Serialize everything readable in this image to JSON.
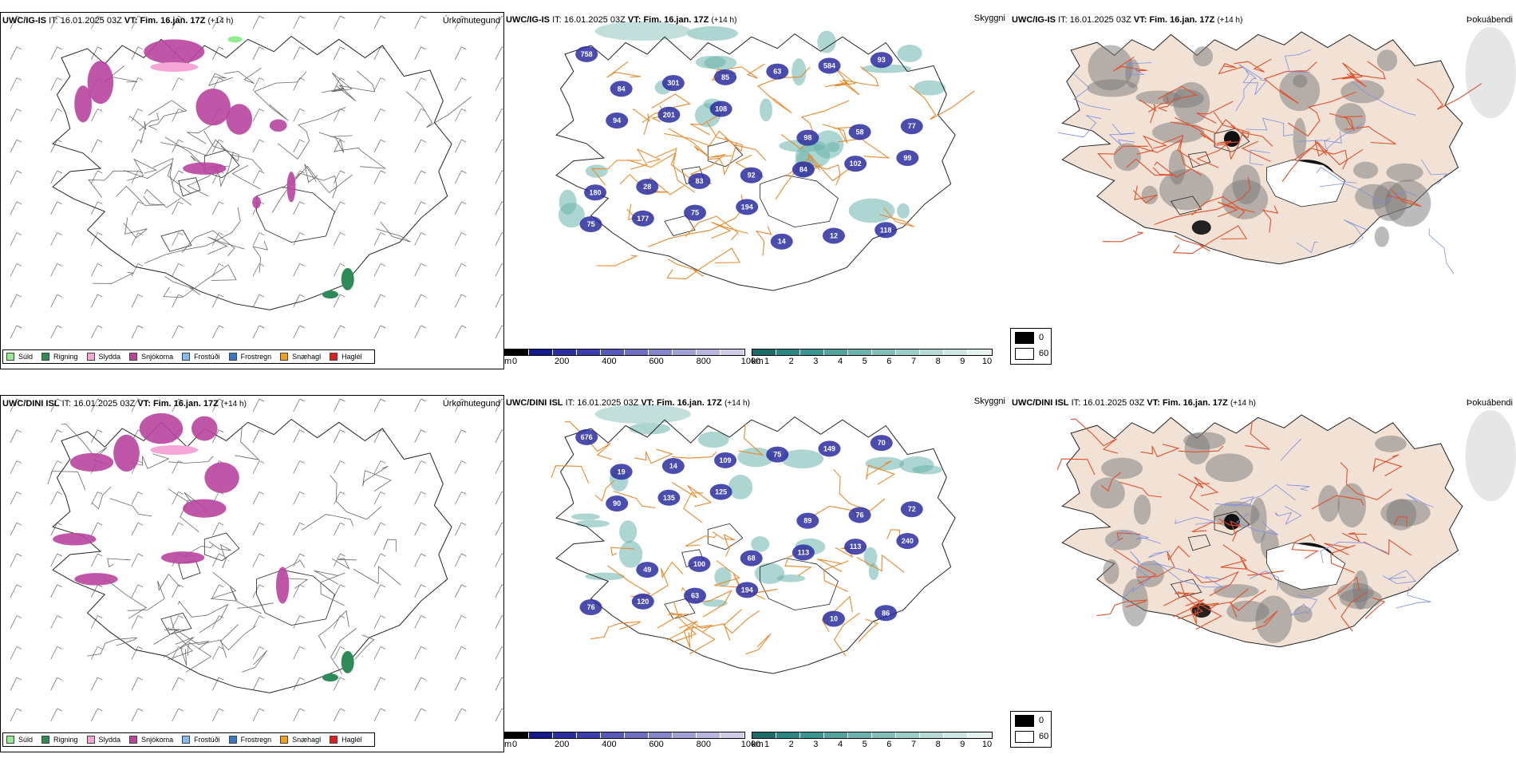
{
  "rows": [
    {
      "model": "UWC/IG-IS",
      "it_label": "IT:",
      "it_value": "16.01.2025 03Z",
      "vt_label": "VT:",
      "vt_value": "Fim. 16.jan. 17Z",
      "lead": "(+14 h)",
      "precip_title": "Úrkomutegund",
      "vis_title": "Skyggni",
      "dew_title": "Þokuábendi",
      "ceiling_labels": [
        "758",
        "194",
        "99",
        "108",
        "93",
        "75",
        "102",
        "201",
        "584",
        "177",
        "84",
        "94",
        "63",
        "75",
        "92",
        "77",
        "85",
        "118",
        "83",
        "58",
        "301",
        "12",
        "28",
        "98",
        "84",
        "14",
        "180"
      ],
      "dewlegend": {
        "black": "0",
        "white": "60"
      }
    },
    {
      "model": "UWC/DINI ISL",
      "it_label": "IT:",
      "it_value": "16.01.2025 03Z",
      "vt_label": "VT:",
      "vt_value": "Fim. 16.jan. 17Z",
      "lead": "(+14 h)",
      "precip_title": "Úrkomutegund",
      "vis_title": "Skyggni",
      "dew_title": "Þokuábendi",
      "ceiling_labels": [
        "676",
        "194",
        "240",
        "125",
        "70",
        "63",
        "113",
        "135",
        "149",
        "120",
        "113",
        "90",
        "75",
        "76",
        "68",
        "72",
        "109",
        "86",
        "100",
        "76",
        "14",
        "10",
        "49",
        "89",
        "19"
      ],
      "dewlegend": {
        "black": "0",
        "white": "60"
      }
    }
  ],
  "precip_legend": [
    {
      "label": "Súld",
      "color": "#90ee90"
    },
    {
      "label": "Rigning",
      "color": "#2e8b57"
    },
    {
      "label": "Slydda",
      "color": "#f4a6d7"
    },
    {
      "label": "Snjókoma",
      "color": "#b8449e"
    },
    {
      "label": "Frostúði",
      "color": "#87b8f0"
    },
    {
      "label": "Frostregn",
      "color": "#3a78c0"
    },
    {
      "label": "Snæhagl",
      "color": "#f0a020"
    },
    {
      "label": "Haglél",
      "color": "#e02020"
    }
  ],
  "ceiling_scale": {
    "unit": "m",
    "ticks": [
      "0",
      "200",
      "400",
      "600",
      "800",
      "1000"
    ],
    "colors": [
      "#000000",
      "#151a8a",
      "#2a2ea0",
      "#3b3fae",
      "#5659b8",
      "#6f70c2",
      "#8686cc",
      "#a09fd6",
      "#b8b6e0",
      "#d0cdea"
    ]
  },
  "visibility_scale": {
    "unit": "km",
    "ticks": [
      "1",
      "2",
      "3",
      "4",
      "5",
      "6",
      "7",
      "8",
      "9",
      "10"
    ],
    "colors": [
      "#1d6e6a",
      "#2a8783",
      "#3a9690",
      "#52a49e",
      "#6ab2ac",
      "#83c0ba",
      "#9ccec8",
      "#b5dbd6",
      "#cde7e3",
      "#e6f3f1"
    ]
  },
  "colors": {
    "snow": "#b8449e",
    "sleet": "#f4a6d7",
    "rain": "#2e8b57",
    "drizzle": "#90ee90",
    "road_vis": "#e88a2e",
    "road_dew": "#e0502a",
    "land_dew": "#f2e2d6",
    "river": "#7a8ee0",
    "low_ceiling": "#2a2ea0",
    "vis_teal": "#6ab2ac"
  }
}
